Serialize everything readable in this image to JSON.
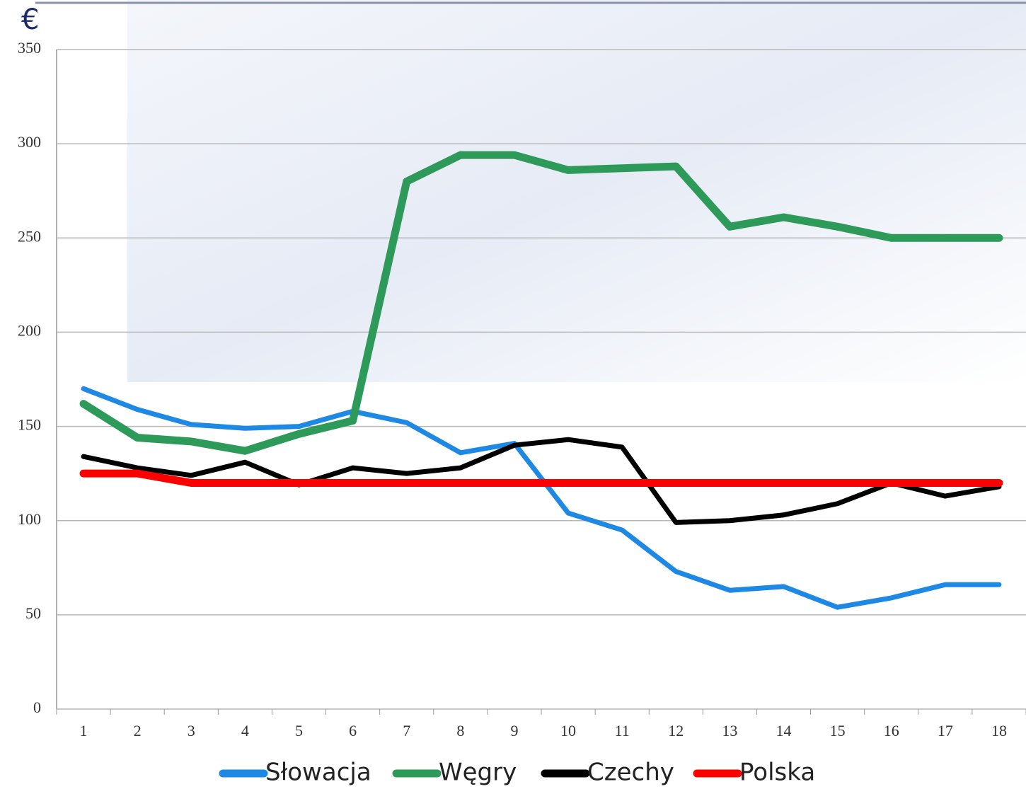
{
  "chart_data": {
    "type": "line",
    "y_label": "€",
    "categories": [
      "1",
      "2",
      "3",
      "4",
      "5",
      "6",
      "7",
      "8",
      "9",
      "10",
      "11",
      "12",
      "13",
      "14",
      "15",
      "16",
      "17",
      "18"
    ],
    "series": [
      {
        "name": "Słowacja",
        "color": "#1e88e5",
        "width": 7,
        "values": [
          170,
          159,
          151,
          149,
          150,
          158,
          152,
          136,
          141,
          104,
          95,
          73,
          63,
          65,
          54,
          59,
          66,
          66
        ]
      },
      {
        "name": "Węgry",
        "color": "#2e9a5a",
        "width": 11,
        "values": [
          162,
          144,
          142,
          137,
          146,
          153,
          280,
          294,
          294,
          286,
          287,
          288,
          256,
          261,
          256,
          250,
          250,
          250
        ]
      },
      {
        "name": "Czechy",
        "color": "#000000",
        "width": 7,
        "values": [
          134,
          128,
          124,
          131,
          119,
          128,
          125,
          128,
          140,
          143,
          139,
          99,
          100,
          103,
          109,
          120,
          113,
          118
        ]
      },
      {
        "name": "Polska",
        "color": "#ff0000",
        "width": 11,
        "values": [
          125,
          125,
          120,
          120,
          120,
          120,
          120,
          120,
          120,
          120,
          120,
          120,
          120,
          120,
          120,
          120,
          120,
          120
        ]
      }
    ],
    "ylim": [
      0,
      350
    ],
    "yticks": [
      0,
      50,
      100,
      150,
      200,
      250,
      300,
      350
    ],
    "grid": true
  }
}
